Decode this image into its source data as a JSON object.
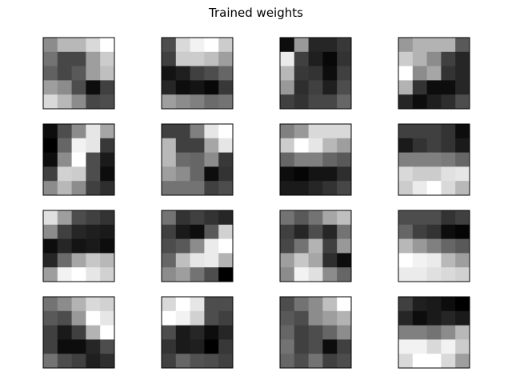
{
  "chart_data": {
    "type": "heatmap",
    "title": "Trained weights",
    "colormap": "gray",
    "grid_rows": 4,
    "grid_cols": 4,
    "patch_size": 5,
    "axes_ticks": false,
    "value_range": [
      0,
      1
    ],
    "panels": [
      [
        [
          0.55,
          0.72,
          0.72,
          0.85,
          1.0
        ],
        [
          0.45,
          0.28,
          0.28,
          0.62,
          0.8
        ],
        [
          0.38,
          0.28,
          0.35,
          0.62,
          0.75
        ],
        [
          0.62,
          0.55,
          0.3,
          0.05,
          0.25
        ],
        [
          0.85,
          0.72,
          0.55,
          0.28,
          0.3
        ]
      ],
      [
        [
          0.3,
          0.85,
          0.95,
          1.0,
          0.8
        ],
        [
          0.25,
          0.8,
          0.8,
          0.75,
          0.62
        ],
        [
          0.08,
          0.12,
          0.25,
          0.3,
          0.4
        ],
        [
          0.15,
          0.05,
          0.08,
          0.03,
          0.22
        ],
        [
          0.62,
          0.55,
          0.5,
          0.42,
          0.45
        ]
      ],
      [
        [
          0.05,
          0.6,
          0.15,
          0.15,
          0.22
        ],
        [
          0.92,
          0.25,
          0.12,
          0.03,
          0.2
        ],
        [
          0.72,
          0.22,
          0.2,
          0.05,
          0.25
        ],
        [
          0.6,
          0.18,
          0.25,
          0.12,
          0.3
        ],
        [
          0.25,
          0.2,
          0.28,
          0.28,
          0.4
        ]
      ],
      [
        [
          0.6,
          0.7,
          0.7,
          0.7,
          0.35
        ],
        [
          0.8,
          0.7,
          0.55,
          0.25,
          0.15
        ],
        [
          1.0,
          0.55,
          0.65,
          0.2,
          0.15
        ],
        [
          0.7,
          0.2,
          0.05,
          0.05,
          0.15
        ],
        [
          0.15,
          0.05,
          0.12,
          0.18,
          0.3
        ]
      ],
      [
        [
          0.05,
          0.3,
          0.55,
          0.9,
          0.65
        ],
        [
          0.0,
          0.4,
          0.95,
          0.9,
          0.22
        ],
        [
          0.05,
          0.55,
          1.0,
          0.3,
          0.1
        ],
        [
          0.25,
          0.82,
          0.8,
          0.3,
          0.05
        ],
        [
          0.55,
          0.72,
          0.55,
          0.25,
          0.18
        ]
      ],
      [
        [
          0.25,
          0.25,
          0.5,
          0.9,
          1.0
        ],
        [
          0.72,
          0.25,
          0.25,
          0.65,
          0.9
        ],
        [
          0.72,
          0.42,
          0.4,
          0.55,
          0.22
        ],
        [
          0.62,
          0.55,
          0.4,
          0.05,
          0.2
        ],
        [
          0.45,
          0.45,
          0.45,
          0.25,
          0.3
        ]
      ],
      [
        [
          0.5,
          0.6,
          0.85,
          0.85,
          0.85
        ],
        [
          0.8,
          1.0,
          0.9,
          0.72,
          0.62
        ],
        [
          0.4,
          0.5,
          0.5,
          0.4,
          0.35
        ],
        [
          0.05,
          0.02,
          0.08,
          0.08,
          0.18
        ],
        [
          0.1,
          0.1,
          0.15,
          0.2,
          0.28
        ]
      ],
      [
        [
          0.25,
          0.25,
          0.25,
          0.2,
          0.05
        ],
        [
          0.1,
          0.2,
          0.25,
          0.2,
          0.1
        ],
        [
          0.5,
          0.5,
          0.5,
          0.48,
          0.4
        ],
        [
          0.85,
          0.8,
          0.8,
          0.88,
          0.9
        ],
        [
          0.8,
          0.92,
          1.0,
          0.85,
          0.72
        ]
      ],
      [
        [
          0.88,
          0.62,
          0.3,
          0.25,
          0.2
        ],
        [
          0.55,
          0.25,
          0.15,
          0.12,
          0.1
        ],
        [
          0.05,
          0.15,
          0.08,
          0.1,
          0.05
        ],
        [
          0.15,
          0.42,
          0.65,
          0.78,
          0.72
        ],
        [
          0.62,
          0.95,
          1.0,
          0.9,
          0.82
        ]
      ],
      [
        [
          0.45,
          0.2,
          0.25,
          0.2,
          0.15
        ],
        [
          0.25,
          0.1,
          0.05,
          0.35,
          0.82
        ],
        [
          0.3,
          0.35,
          0.55,
          0.92,
          1.0
        ],
        [
          0.4,
          0.75,
          0.9,
          0.92,
          0.7
        ],
        [
          0.55,
          0.62,
          0.45,
          0.3,
          0.0
        ]
      ],
      [
        [
          0.45,
          0.35,
          0.45,
          0.65,
          0.75
        ],
        [
          0.25,
          0.15,
          0.3,
          0.15,
          0.45
        ],
        [
          0.28,
          0.45,
          0.7,
          0.25,
          0.6
        ],
        [
          0.62,
          0.78,
          0.65,
          0.18,
          0.05
        ],
        [
          0.55,
          0.95,
          0.88,
          0.55,
          0.4
        ]
      ],
      [
        [
          0.3,
          0.3,
          0.3,
          0.2,
          0.25
        ],
        [
          0.4,
          0.25,
          0.2,
          0.05,
          0.02
        ],
        [
          0.72,
          0.6,
          0.5,
          0.4,
          0.35
        ],
        [
          1.0,
          0.95,
          0.92,
          0.72,
          0.62
        ],
        [
          0.92,
          0.92,
          0.88,
          0.85,
          0.82
        ]
      ],
      [
        [
          0.45,
          0.55,
          0.7,
          0.85,
          0.82
        ],
        [
          0.35,
          0.3,
          0.6,
          1.0,
          0.9
        ],
        [
          0.25,
          0.1,
          0.25,
          0.7,
          1.0
        ],
        [
          0.25,
          0.05,
          0.05,
          0.15,
          0.3
        ],
        [
          0.45,
          0.3,
          0.25,
          0.12,
          0.18
        ]
      ],
      [
        [
          0.85,
          1.0,
          0.9,
          0.3,
          0.3
        ],
        [
          1.0,
          0.95,
          0.82,
          0.3,
          0.25
        ],
        [
          0.3,
          0.1,
          0.15,
          0.05,
          0.15
        ],
        [
          0.2,
          0.1,
          0.12,
          0.0,
          0.22
        ],
        [
          0.25,
          0.4,
          0.32,
          0.3,
          0.25
        ]
      ],
      [
        [
          0.3,
          0.45,
          0.55,
          0.75,
          1.0
        ],
        [
          0.35,
          0.3,
          0.55,
          0.62,
          0.7
        ],
        [
          0.4,
          0.25,
          0.3,
          0.4,
          0.55
        ],
        [
          0.45,
          0.25,
          0.3,
          0.05,
          0.25
        ],
        [
          0.4,
          0.3,
          0.45,
          0.25,
          0.3
        ]
      ],
      [
        [
          0.25,
          0.12,
          0.1,
          0.05,
          0.0
        ],
        [
          0.15,
          0.05,
          0.1,
          0.15,
          0.1
        ],
        [
          0.5,
          0.5,
          0.45,
          0.55,
          0.72
        ],
        [
          0.95,
          0.95,
          0.85,
          0.95,
          0.8
        ],
        [
          0.85,
          1.0,
          1.0,
          0.85,
          0.62
        ]
      ]
    ]
  }
}
